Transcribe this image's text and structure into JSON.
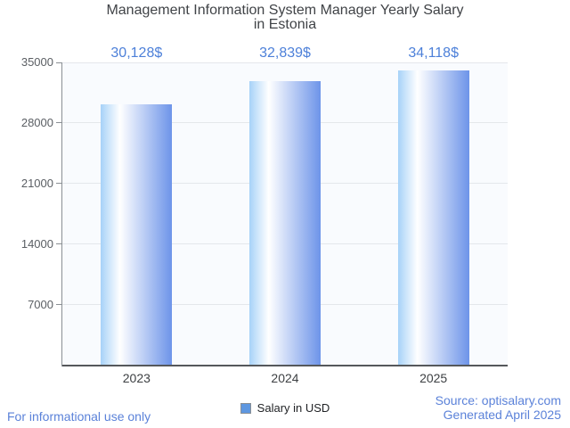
{
  "title": {
    "line1": "Management Information System Manager Yearly Salary",
    "line2": "in Estonia"
  },
  "chart_data": {
    "type": "bar",
    "title": "Management Information System Manager Yearly Salary in Estonia",
    "categories": [
      "2023",
      "2024",
      "2025"
    ],
    "series": [
      {
        "name": "Salary in USD",
        "values": [
          30128,
          32839,
          34118
        ]
      }
    ],
    "value_labels": [
      "30,128$",
      "32,839$",
      "34,118$"
    ],
    "xlabel": "",
    "ylabel": "",
    "y_ticks": [
      7000,
      14000,
      21000,
      28000,
      35000
    ],
    "ylim": [
      0,
      35000
    ],
    "grid": true,
    "legend_position": "bottom"
  },
  "legend": {
    "label": "Salary in USD"
  },
  "footer": {
    "disclaimer": "For informational use only",
    "source": "Source: optisalary.com",
    "generated": "Generated April 2025"
  },
  "colors": {
    "value_label": "#4d80d9",
    "footer_text": "#5b82d9",
    "bar_left": "#a7d2f8",
    "bar_mid": "#ffffff",
    "bar_right": "#6d94e9",
    "legend_swatch": "#5e97e0",
    "gridline": "#e4e7eb",
    "axis_line": "#8a8f94",
    "baseline": "#55585b",
    "title_text": "#404347",
    "tick_label": "#5a5e63",
    "category_label": "#3d4043"
  }
}
